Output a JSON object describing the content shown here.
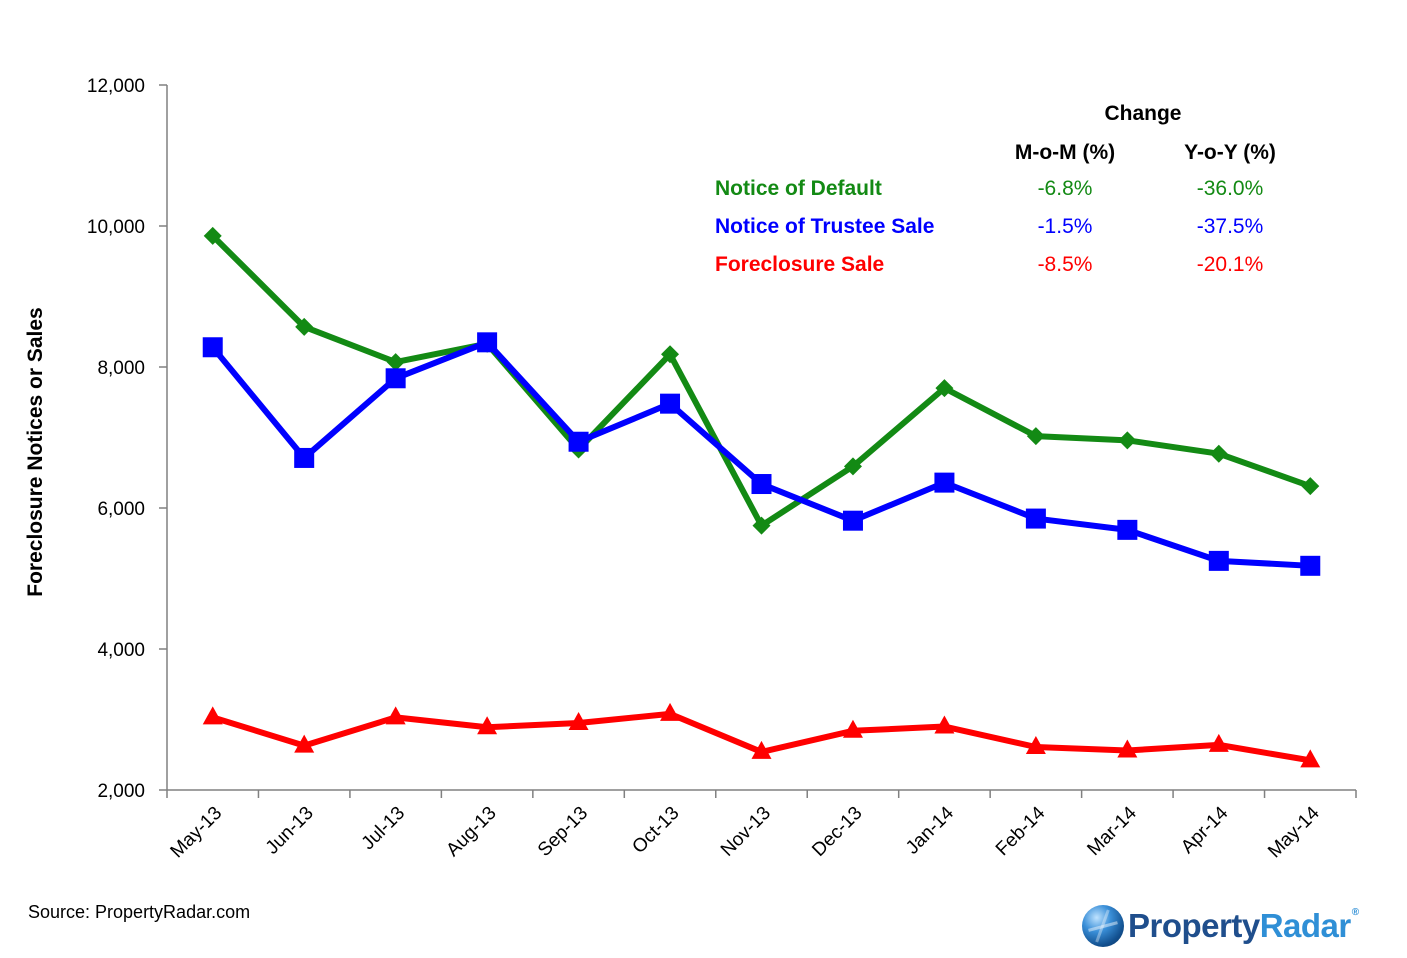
{
  "chart_data": {
    "type": "line",
    "title": "",
    "xlabel": "",
    "ylabel": "Foreclosure Notices or Sales",
    "ylim": [
      2000,
      12000
    ],
    "yticks": [
      2000,
      4000,
      6000,
      8000,
      10000,
      12000
    ],
    "ytick_labels": [
      "2,000",
      "4,000",
      "6,000",
      "8,000",
      "10,000",
      "12,000"
    ],
    "categories": [
      "May-13",
      "Jun-13",
      "Jul-13",
      "Aug-13",
      "Sep-13",
      "Oct-13",
      "Nov-13",
      "Dec-13",
      "Jan-14",
      "Feb-14",
      "Mar-14",
      "Apr-14",
      "May-14"
    ],
    "grid": false,
    "series": [
      {
        "name": "Notice of Default",
        "color": "#138a14",
        "marker": "diamond",
        "values": [
          9860,
          8570,
          8070,
          8330,
          6830,
          8180,
          5750,
          6590,
          7700,
          7020,
          6960,
          6770,
          6310
        ]
      },
      {
        "name": "Notice of Trustee Sale",
        "color": "#0000ff",
        "marker": "square",
        "values": [
          8280,
          6710,
          7840,
          8350,
          6940,
          7480,
          6340,
          5820,
          6360,
          5850,
          5690,
          5250,
          5180
        ]
      },
      {
        "name": "Foreclosure Sale",
        "color": "#ff0000",
        "marker": "triangle",
        "values": [
          3030,
          2630,
          3030,
          2890,
          2950,
          3080,
          2540,
          2840,
          2900,
          2610,
          2560,
          2640,
          2420
        ]
      }
    ],
    "change_table": {
      "title": "Change",
      "col_headers": [
        "M-o-M (%)",
        "Y-o-Y (%)"
      ],
      "rows": [
        {
          "name": "Notice of Default",
          "mom": "-6.8%",
          "yoy": "-36.0%"
        },
        {
          "name": "Notice of Trustee Sale",
          "mom": "-1.5%",
          "yoy": "-37.5%"
        },
        {
          "name": "Foreclosure Sale",
          "mom": "-8.5%",
          "yoy": "-20.1%"
        }
      ]
    }
  },
  "footer": {
    "source": "Source: PropertyRadar.com",
    "logo_part1": "Property",
    "logo_part2": "Radar",
    "logo_reg": "®"
  }
}
